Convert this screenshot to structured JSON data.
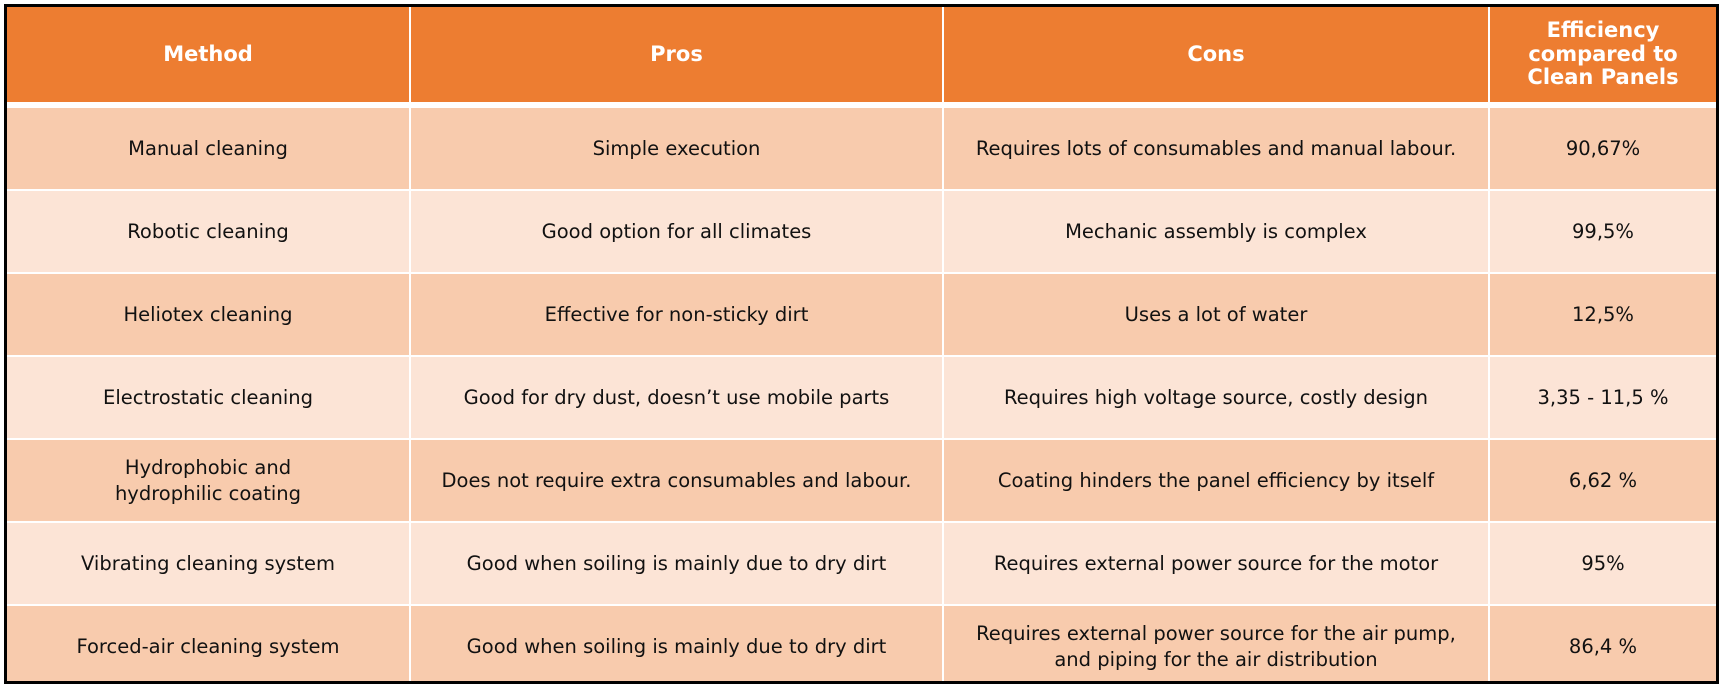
{
  "headers": {
    "method": "Method",
    "pros": "Pros",
    "cons": "Cons",
    "efficiency_line1": "Efficiency",
    "efficiency_line2": "compared to",
    "efficiency_line3": "Clean Panels"
  },
  "rows": [
    {
      "method": "Manual cleaning",
      "pros": "Simple execution",
      "cons": "Requires lots of consumables and manual labour.",
      "efficiency": "90,67%"
    },
    {
      "method": "Robotic cleaning",
      "pros": "Good option for all climates",
      "cons": "Mechanic assembly is complex",
      "efficiency": "99,5%"
    },
    {
      "method": "Heliotex cleaning",
      "pros": "Effective for non-sticky dirt",
      "cons": "Uses a lot of water",
      "efficiency": "12,5%"
    },
    {
      "method": "Electrostatic cleaning",
      "pros": "Good for dry dust, doesn’t use mobile parts",
      "cons": "Requires high voltage source, costly design",
      "efficiency": "3,35 - 11,5 %"
    },
    {
      "method_line1": "Hydrophobic and",
      "method_line2": "hydrophilic coating",
      "pros": "Does not require extra consumables and labour.",
      "cons": "Coating hinders the panel efficiency by itself",
      "efficiency": "6,62 %"
    },
    {
      "method": "Vibrating cleaning system",
      "pros": "Good when soiling is mainly due to dry dirt",
      "cons": "Requires external power source for the motor",
      "efficiency": "95%"
    },
    {
      "method": "Forced-air cleaning system",
      "pros": "Good when soiling is mainly due to dry dirt",
      "cons_line1": "Requires external power source for the air pump,",
      "cons_line2": "and piping for the air distribution",
      "efficiency": "86,4 %"
    }
  ],
  "colors": {
    "header_bg": "#ed7d31",
    "row_dark": "#f8cbad",
    "row_light": "#fce4d6",
    "border": "#000000"
  }
}
